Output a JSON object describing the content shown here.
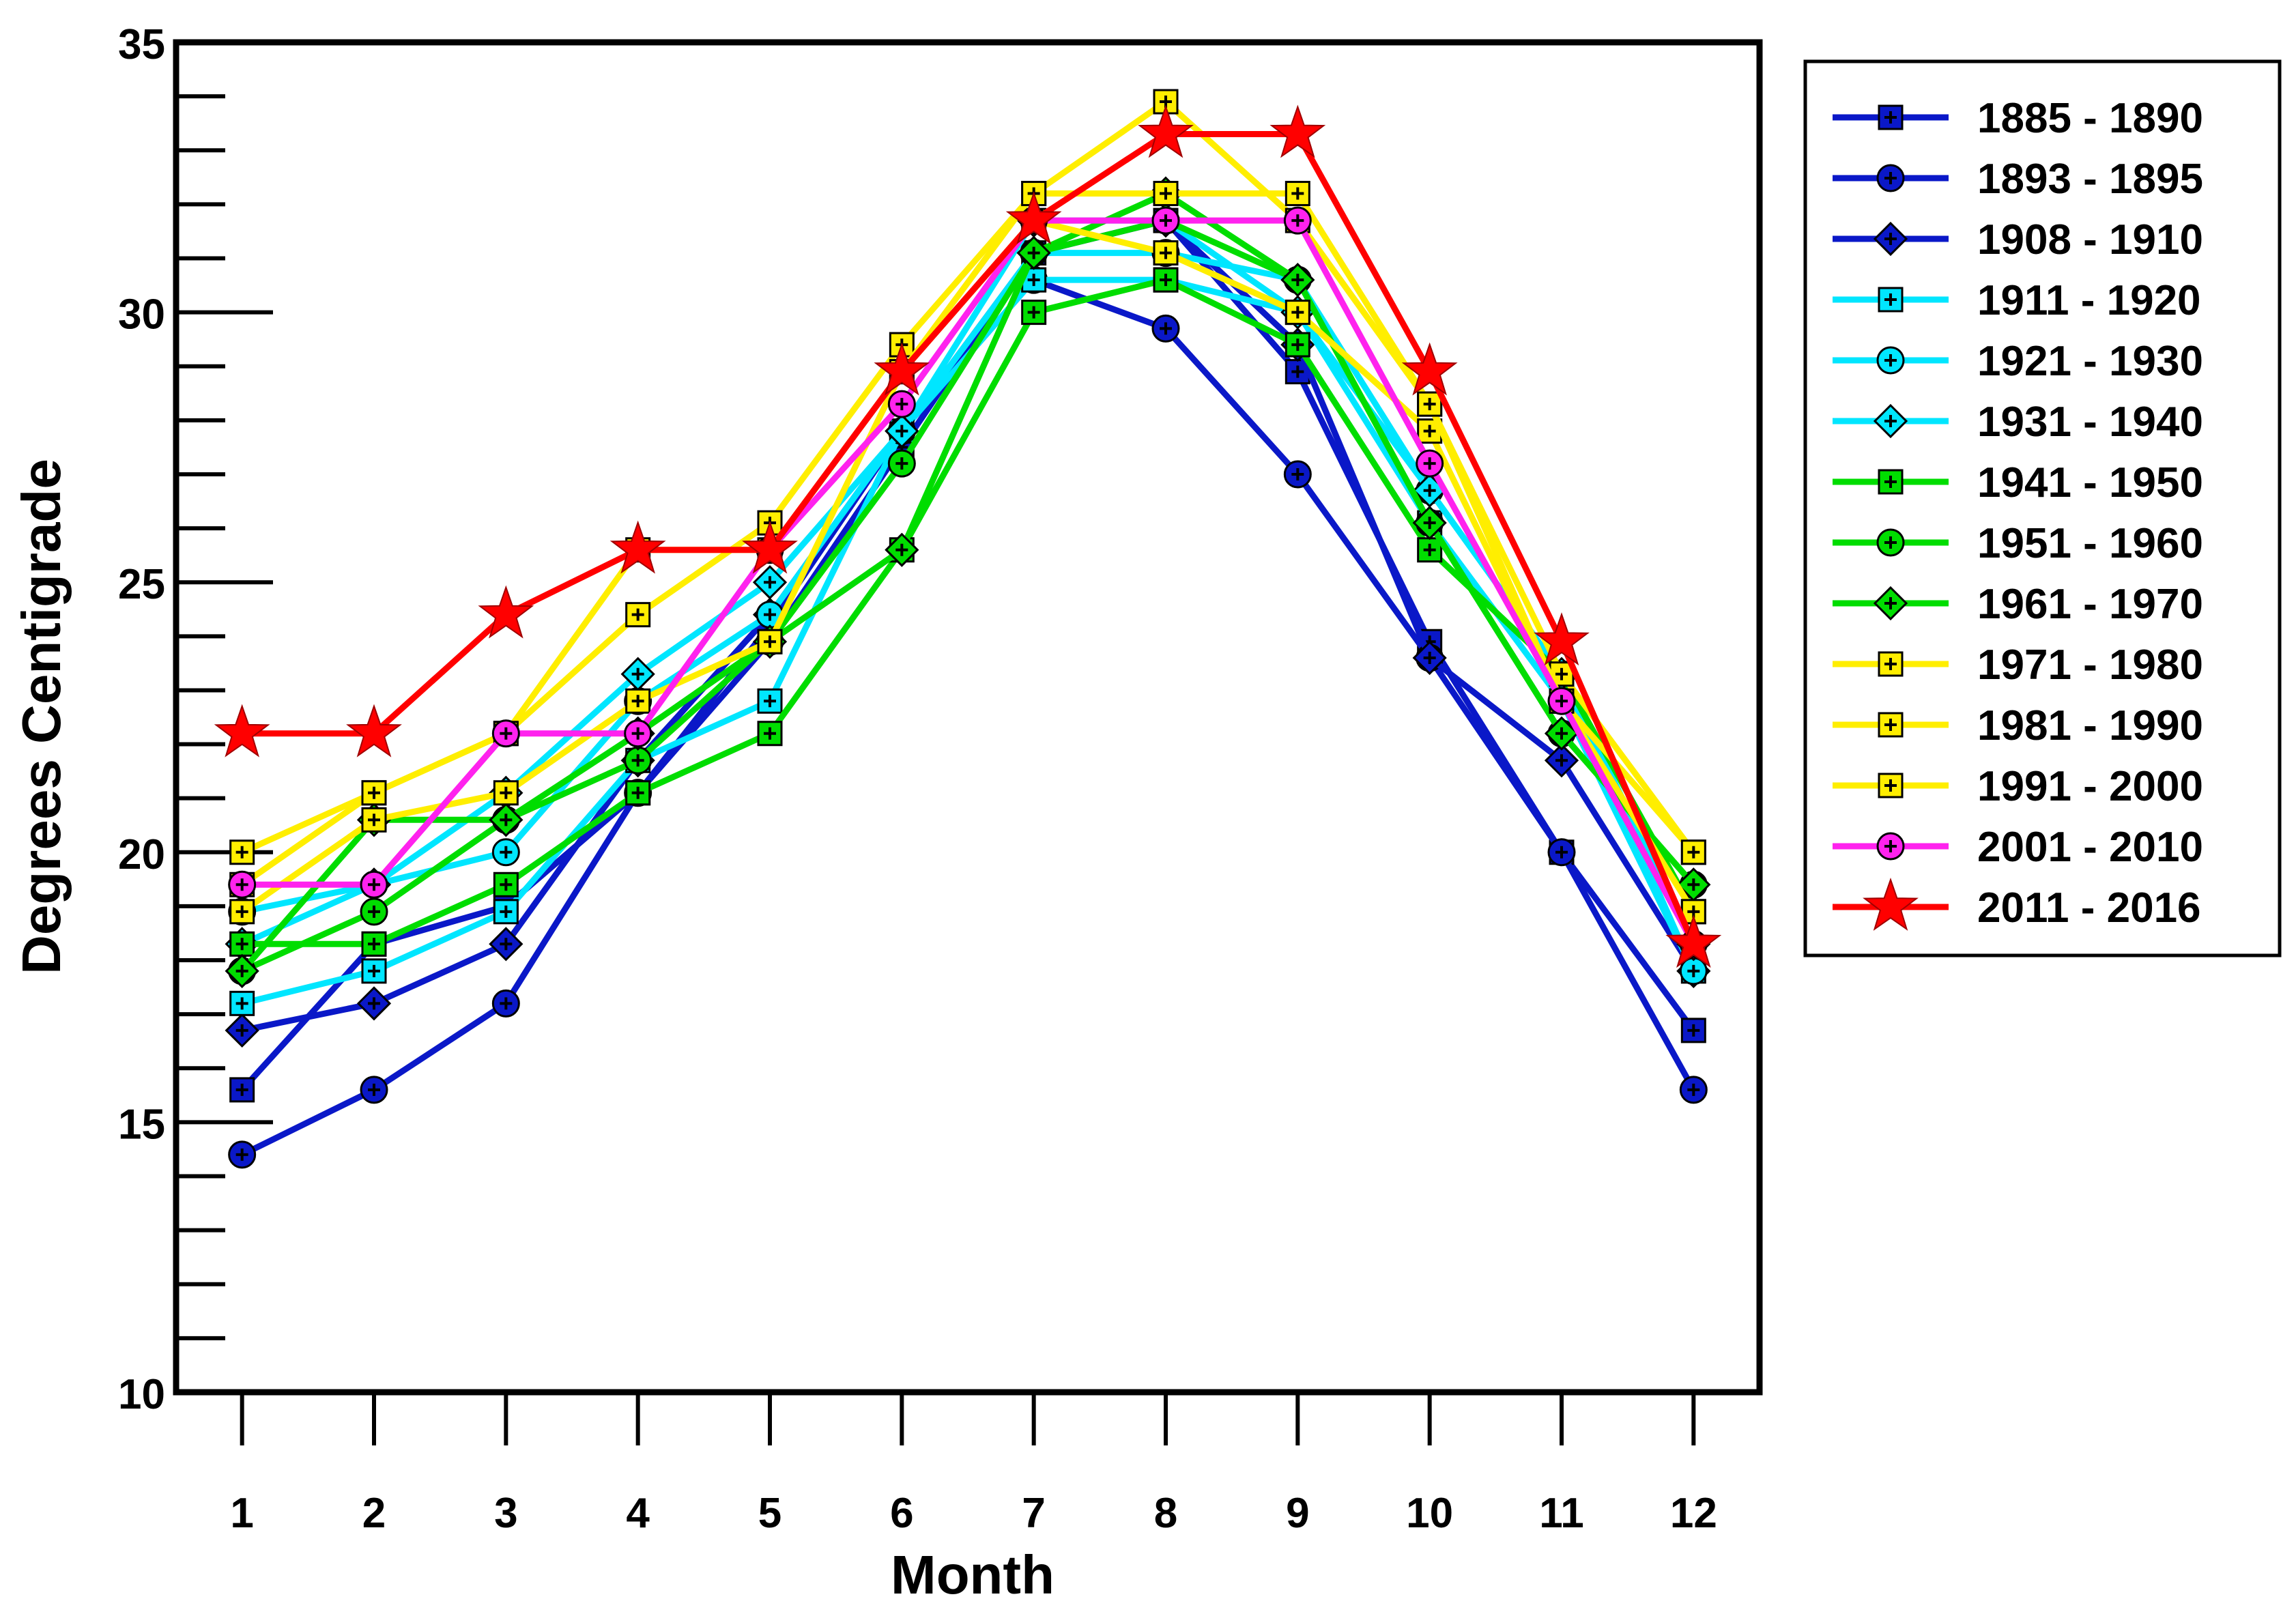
{
  "chart_data": {
    "type": "line",
    "title": "",
    "xlabel": "Month",
    "ylabel": "Degrees Centigrade",
    "xlim": [
      0.5,
      12.5
    ],
    "ylim": [
      10,
      35
    ],
    "x": [
      1,
      2,
      3,
      4,
      5,
      6,
      7,
      8,
      9,
      10,
      11,
      12
    ],
    "x_tick_labels": [
      "1",
      "2",
      "3",
      "4",
      "5",
      "6",
      "7",
      "8",
      "9",
      "10",
      "11",
      "12"
    ],
    "y_ticks": [
      10,
      15,
      20,
      25,
      30,
      35
    ],
    "y_tick_labels": [
      "10",
      "15",
      "20",
      "25",
      "30",
      "35"
    ],
    "y_minor_step": 1,
    "grid": false,
    "legend_position": "right",
    "series": [
      {
        "name": "1885 - 1890",
        "color": "#0a18c8",
        "marker": "square",
        "values": [
          15.6,
          18.3,
          19.0,
          21.1,
          23.9,
          27.5,
          31.1,
          31.7,
          28.9,
          23.9,
          20.0,
          16.7
        ]
      },
      {
        "name": "1893 - 1895",
        "color": "#0a18c8",
        "marker": "circle",
        "values": [
          14.4,
          15.6,
          17.2,
          21.1,
          24.2,
          27.8,
          30.6,
          29.7,
          27.0,
          23.6,
          20.0,
          15.6
        ]
      },
      {
        "name": "1908 - 1910",
        "color": "#0a18c8",
        "marker": "diamond",
        "values": [
          16.7,
          17.2,
          18.3,
          21.7,
          24.4,
          27.8,
          31.1,
          31.7,
          29.4,
          23.6,
          21.7,
          17.8
        ]
      },
      {
        "name": "1911 - 1920",
        "color": "#00e6ff",
        "marker": "square",
        "values": [
          17.2,
          17.8,
          18.9,
          21.7,
          22.8,
          27.8,
          30.6,
          30.6,
          30.0,
          26.1,
          22.8,
          17.8
        ]
      },
      {
        "name": "1921 - 1930",
        "color": "#00e6ff",
        "marker": "circle",
        "values": [
          18.9,
          19.4,
          20.0,
          22.8,
          24.4,
          27.8,
          31.1,
          31.1,
          30.6,
          26.7,
          23.3,
          17.8
        ]
      },
      {
        "name": "1931 - 1940",
        "color": "#00e6ff",
        "marker": "diamond",
        "values": [
          18.3,
          19.4,
          21.1,
          23.3,
          25.0,
          27.8,
          31.7,
          31.7,
          30.0,
          26.7,
          23.3,
          18.3
        ]
      },
      {
        "name": "1941 - 1950",
        "color": "#00dd00",
        "marker": "square",
        "values": [
          18.3,
          18.3,
          19.4,
          21.1,
          22.2,
          25.6,
          30.0,
          30.6,
          29.4,
          25.6,
          23.3,
          18.9
        ]
      },
      {
        "name": "1951 - 1960",
        "color": "#00dd00",
        "marker": "circle",
        "values": [
          17.8,
          18.9,
          20.6,
          21.7,
          23.9,
          27.2,
          31.1,
          31.7,
          30.6,
          26.1,
          22.2,
          19.4
        ]
      },
      {
        "name": "1961 - 1970",
        "color": "#00dd00",
        "marker": "diamond",
        "values": [
          17.8,
          20.6,
          20.6,
          22.2,
          23.9,
          25.6,
          31.1,
          32.2,
          30.6,
          26.1,
          22.2,
          19.4
        ]
      },
      {
        "name": "1971 - 1980",
        "color": "#ffee00",
        "marker": "square",
        "values": [
          18.9,
          20.6,
          21.1,
          22.8,
          23.9,
          28.9,
          31.7,
          31.1,
          30.0,
          27.8,
          22.8,
          18.9
        ]
      },
      {
        "name": "1981 - 1990",
        "color": "#ffee00",
        "marker": "square",
        "values": [
          20.0,
          21.1,
          22.2,
          24.4,
          26.1,
          29.4,
          32.2,
          33.9,
          31.7,
          28.3,
          23.3,
          20.0
        ]
      },
      {
        "name": "1991 - 2000",
        "color": "#ffee00",
        "marker": "square",
        "values": [
          19.4,
          21.1,
          22.2,
          25.6,
          25.6,
          28.9,
          32.2,
          32.2,
          32.2,
          28.3,
          22.8,
          20.0
        ]
      },
      {
        "name": "2001 - 2010",
        "color": "#ff22ee",
        "marker": "circle",
        "values": [
          19.4,
          19.4,
          22.2,
          22.2,
          25.6,
          28.3,
          31.7,
          31.7,
          31.7,
          27.2,
          22.8,
          18.3
        ]
      },
      {
        "name": "2011 - 2016",
        "color": "#ff0000",
        "marker": "star",
        "values": [
          22.2,
          22.2,
          24.4,
          25.6,
          25.6,
          28.9,
          31.7,
          33.3,
          33.3,
          28.9,
          23.9,
          18.3
        ]
      }
    ]
  }
}
